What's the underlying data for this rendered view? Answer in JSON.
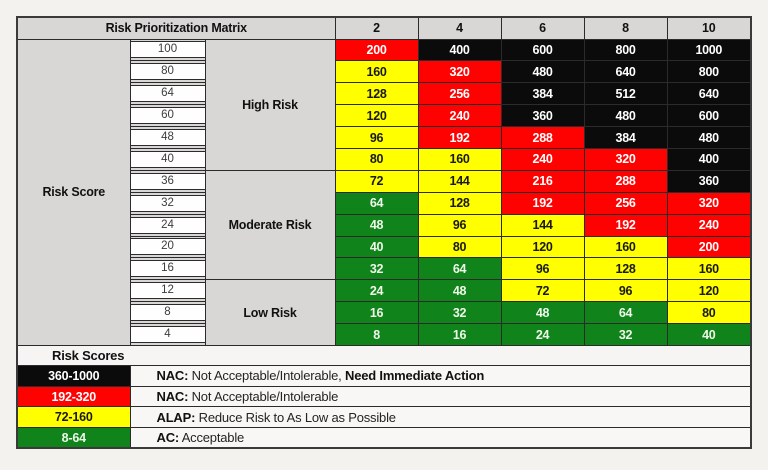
{
  "chart_data": {
    "type": "heatmap",
    "title": "Risk Prioritization Matrix",
    "x_categories": [
      "2",
      "4",
      "6",
      "8",
      "10"
    ],
    "y_axis_label": "Risk Score",
    "y_categories": [
      100,
      80,
      64,
      60,
      48,
      40,
      36,
      32,
      24,
      20,
      16,
      12,
      8,
      4
    ],
    "values": [
      [
        200,
        400,
        600,
        800,
        1000
      ],
      [
        160,
        320,
        480,
        640,
        800
      ],
      [
        128,
        256,
        384,
        512,
        640
      ],
      [
        120,
        240,
        360,
        480,
        600
      ],
      [
        96,
        192,
        288,
        384,
        480
      ],
      [
        80,
        160,
        240,
        320,
        400
      ],
      [
        72,
        144,
        216,
        288,
        360
      ],
      [
        64,
        128,
        192,
        256,
        320
      ],
      [
        48,
        96,
        144,
        192,
        240
      ],
      [
        40,
        80,
        120,
        160,
        200
      ],
      [
        32,
        64,
        96,
        128,
        160
      ],
      [
        24,
        48,
        72,
        96,
        120
      ],
      [
        16,
        32,
        48,
        64,
        80
      ],
      [
        8,
        16,
        24,
        32,
        40
      ]
    ],
    "cell_levels": [
      [
        "red",
        "black",
        "black",
        "black",
        "black"
      ],
      [
        "yellow",
        "red",
        "black",
        "black",
        "black"
      ],
      [
        "yellow",
        "red",
        "black",
        "black",
        "black"
      ],
      [
        "yellow",
        "red",
        "black",
        "black",
        "black"
      ],
      [
        "yellow",
        "red",
        "red",
        "black",
        "black"
      ],
      [
        "yellow",
        "yellow",
        "red",
        "red",
        "black"
      ],
      [
        "yellow",
        "yellow",
        "red",
        "red",
        "black"
      ],
      [
        "green",
        "yellow",
        "red",
        "red",
        "red"
      ],
      [
        "green",
        "yellow",
        "yellow",
        "red",
        "red"
      ],
      [
        "green",
        "yellow",
        "yellow",
        "yellow",
        "red"
      ],
      [
        "green",
        "green",
        "yellow",
        "yellow",
        "yellow"
      ],
      [
        "green",
        "green",
        "yellow",
        "yellow",
        "yellow"
      ],
      [
        "green",
        "green",
        "green",
        "green",
        "yellow"
      ],
      [
        "green",
        "green",
        "green",
        "green",
        "green"
      ]
    ],
    "row_groups": [
      {
        "label": "High Risk",
        "rows": 6
      },
      {
        "label": "Moderate Risk",
        "rows": 5
      },
      {
        "label": "Low Risk",
        "rows": 3
      }
    ],
    "level_colors": {
      "black": "#0B0B0B",
      "red": "#FE0202",
      "yellow": "#FFFF00",
      "green": "#10831B",
      "header_gray": "#D8D7D5"
    },
    "legend": {
      "title": "Risk Scores",
      "entries": [
        {
          "range": "360-1000",
          "level": "black",
          "abbr": "NAC:",
          "text": " Not Acceptable/Intolerable, ",
          "bold_suffix": "Need Immediate Action"
        },
        {
          "range": "192-320",
          "level": "red",
          "abbr": "NAC:",
          "text": " Not Acceptable/Intolerable",
          "bold_suffix": ""
        },
        {
          "range": "72-160",
          "level": "yellow",
          "abbr": "ALAP:",
          "text": " Reduce Risk to As Low as Possible",
          "bold_suffix": ""
        },
        {
          "range": "8-64",
          "level": "green",
          "abbr": "AC:",
          "text": " Acceptable",
          "bold_suffix": ""
        }
      ]
    }
  }
}
